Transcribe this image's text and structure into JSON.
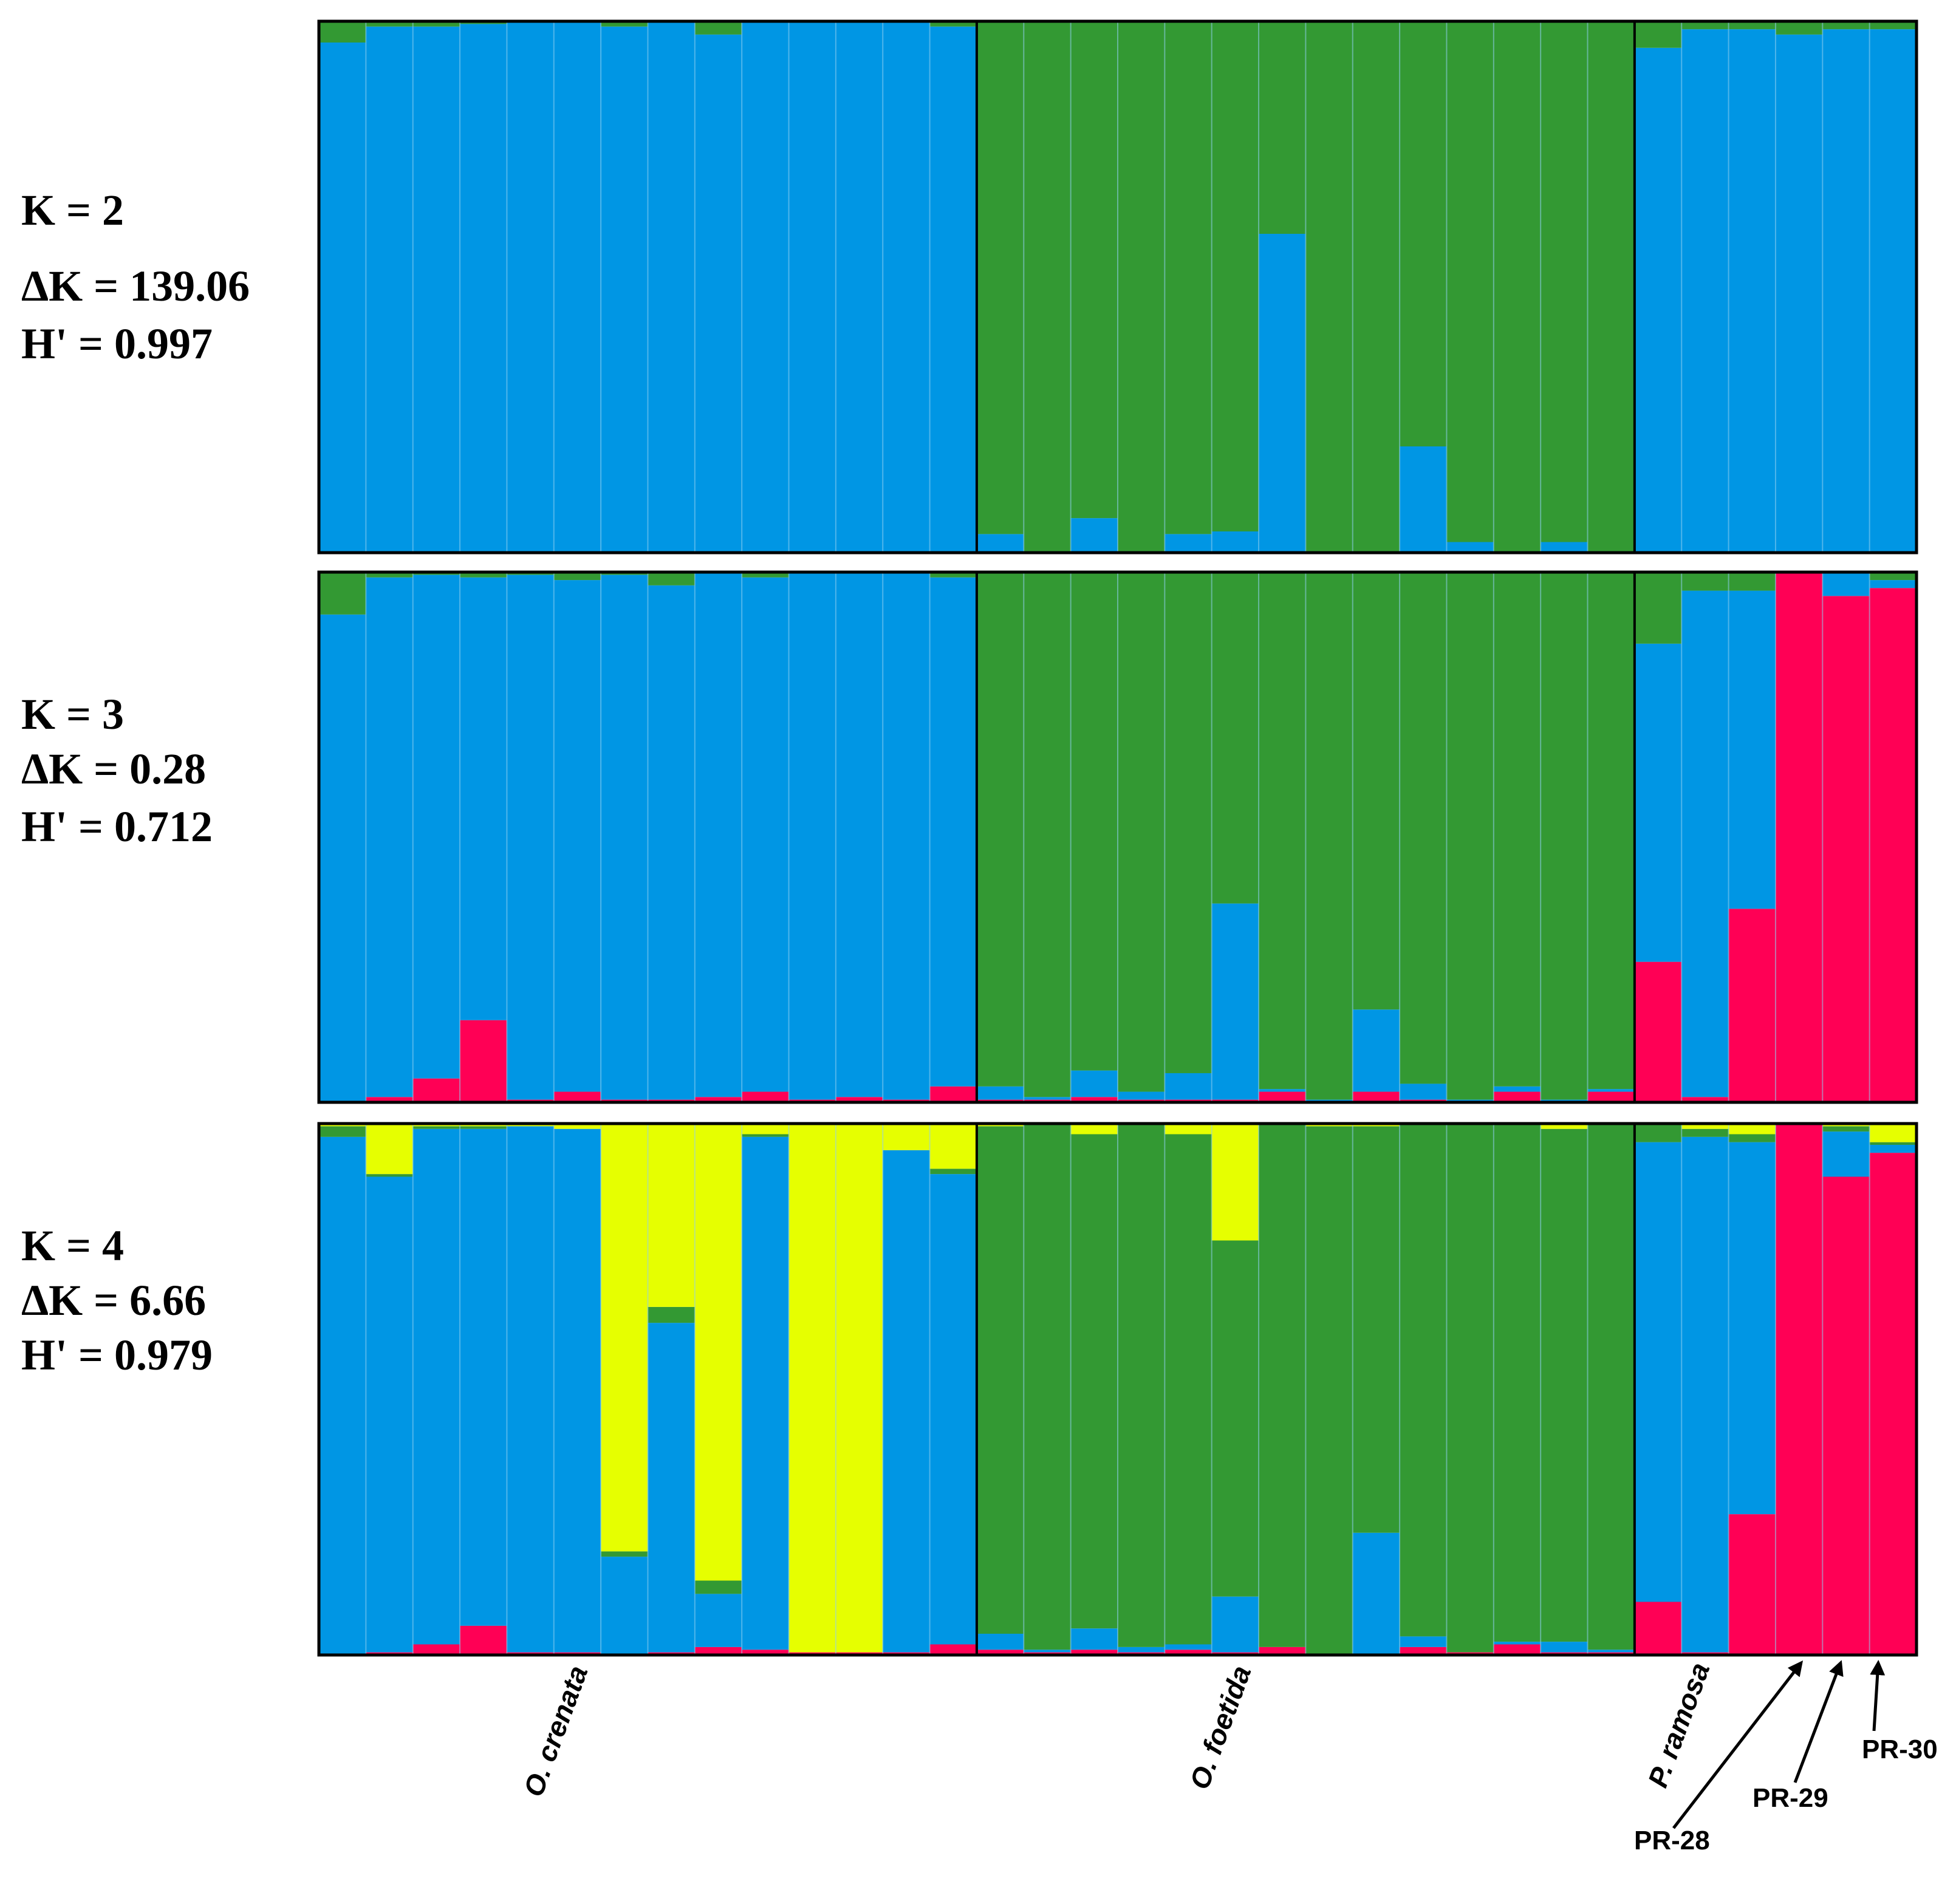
{
  "colors": {
    "blue": "#0096e4",
    "green": "#339933",
    "red": "#ff0055",
    "yellow": "#e6ff00",
    "border": "#000000",
    "separator": "#8fd0f0"
  },
  "chart_data": {
    "type": "bar",
    "subtype": "stacked-admixture",
    "n_individuals": 34,
    "groups": [
      {
        "name": "O. crenata",
        "start": 0,
        "count": 14
      },
      {
        "name": "O. foetida",
        "start": 14,
        "count": 14
      },
      {
        "name": "P. ramosa",
        "start": 28,
        "count": 6
      }
    ],
    "annotations": [
      "PR-28",
      "PR-29",
      "PR-30"
    ],
    "annotation_targets": [
      31,
      32,
      33
    ],
    "panels": [
      {
        "k_label": "K = 2",
        "dk_label": "ΔK = 139.06",
        "h_label": "H' = 0.997",
        "cluster_order": [
          "blue",
          "green"
        ],
        "values": [
          [
            0.96,
            0.04
          ],
          [
            0.99,
            0.01
          ],
          [
            0.99,
            0.01
          ],
          [
            0.995,
            0.005
          ],
          [
            1.0,
            0.0
          ],
          [
            1.0,
            0.0
          ],
          [
            0.99,
            0.01
          ],
          [
            1.0,
            0.0
          ],
          [
            0.975,
            0.025
          ],
          [
            1.0,
            0.0
          ],
          [
            1.0,
            0.0
          ],
          [
            1.0,
            0.0
          ],
          [
            1.0,
            0.0
          ],
          [
            0.99,
            0.01
          ],
          [
            0.035,
            0.965
          ],
          [
            0.0,
            1.0
          ],
          [
            0.065,
            0.935
          ],
          [
            0.0,
            1.0
          ],
          [
            0.035,
            0.965
          ],
          [
            0.04,
            0.96
          ],
          [
            0.6,
            0.4
          ],
          [
            0.0,
            1.0
          ],
          [
            0.0,
            1.0
          ],
          [
            0.2,
            0.8
          ],
          [
            0.02,
            0.98
          ],
          [
            0.0,
            1.0
          ],
          [
            0.02,
            0.98
          ],
          [
            0.0,
            1.0
          ],
          [
            0.95,
            0.05
          ],
          [
            0.985,
            0.015
          ],
          [
            0.985,
            0.015
          ],
          [
            0.975,
            0.025
          ],
          [
            0.985,
            0.015
          ],
          [
            0.985,
            0.015
          ]
        ]
      },
      {
        "k_label": "K = 3",
        "dk_label": "ΔK = 0.28",
        "h_label": "H' = 0.712",
        "cluster_order": [
          "red",
          "blue",
          "green"
        ],
        "values": [
          [
            0.0,
            0.92,
            0.08
          ],
          [
            0.01,
            0.98,
            0.01
          ],
          [
            0.045,
            0.95,
            0.005
          ],
          [
            0.155,
            0.835,
            0.01
          ],
          [
            0.005,
            0.99,
            0.005
          ],
          [
            0.02,
            0.965,
            0.015
          ],
          [
            0.005,
            0.99,
            0.005
          ],
          [
            0.005,
            0.97,
            0.025
          ],
          [
            0.01,
            0.99,
            0.0
          ],
          [
            0.02,
            0.97,
            0.01
          ],
          [
            0.005,
            0.995,
            0.0
          ],
          [
            0.01,
            0.99,
            0.0
          ],
          [
            0.005,
            0.995,
            0.0
          ],
          [
            0.03,
            0.96,
            0.01
          ],
          [
            0.005,
            0.025,
            0.97
          ],
          [
            0.005,
            0.005,
            0.99
          ],
          [
            0.01,
            0.05,
            0.94
          ],
          [
            0.005,
            0.015,
            0.98
          ],
          [
            0.005,
            0.05,
            0.945
          ],
          [
            0.005,
            0.37,
            0.625
          ],
          [
            0.02,
            0.005,
            0.975
          ],
          [
            0.0,
            0.005,
            0.995
          ],
          [
            0.02,
            0.155,
            0.825
          ],
          [
            0.005,
            0.03,
            0.965
          ],
          [
            0.0,
            0.005,
            0.995
          ],
          [
            0.02,
            0.01,
            0.97
          ],
          [
            0.0,
            0.005,
            0.995
          ],
          [
            0.02,
            0.005,
            0.975
          ],
          [
            0.265,
            0.6,
            0.135
          ],
          [
            0.01,
            0.955,
            0.035
          ],
          [
            0.365,
            0.6,
            0.035
          ],
          [
            1.0,
            0.0,
            0.0
          ],
          [
            0.955,
            0.045,
            0.0
          ],
          [
            0.97,
            0.015,
            0.015
          ]
        ]
      },
      {
        "k_label": "K = 4",
        "dk_label": "ΔK = 6.66",
        "h_label": "H' = 0.979",
        "cluster_order": [
          "red",
          "blue",
          "green",
          "yellow"
        ],
        "values": [
          [
            0.0,
            0.975,
            0.02,
            0.005
          ],
          [
            0.005,
            0.895,
            0.005,
            0.095
          ],
          [
            0.02,
            0.97,
            0.005,
            0.005
          ],
          [
            0.055,
            0.935,
            0.005,
            0.005
          ],
          [
            0.005,
            0.99,
            0.0,
            0.005
          ],
          [
            0.005,
            0.985,
            0.0,
            0.01
          ],
          [
            0.0,
            0.185,
            0.01,
            0.805
          ],
          [
            0.005,
            0.62,
            0.03,
            0.345
          ],
          [
            0.015,
            0.1,
            0.025,
            0.86
          ],
          [
            0.01,
            0.965,
            0.005,
            0.02
          ],
          [
            0.005,
            0.0,
            0.0,
            0.995
          ],
          [
            0.005,
            0.0,
            0.0,
            0.995
          ],
          [
            0.005,
            0.945,
            0.0,
            0.05
          ],
          [
            0.02,
            0.885,
            0.01,
            0.085
          ],
          [
            0.01,
            0.03,
            0.955,
            0.005
          ],
          [
            0.005,
            0.005,
            0.99,
            0.0
          ],
          [
            0.01,
            0.04,
            0.93,
            0.02
          ],
          [
            0.005,
            0.01,
            0.985,
            0.0
          ],
          [
            0.01,
            0.01,
            0.96,
            0.02
          ],
          [
            0.005,
            0.105,
            0.67,
            0.22
          ],
          [
            0.015,
            0.0,
            0.985,
            0.0
          ],
          [
            0.0,
            0.0,
            0.995,
            0.005
          ],
          [
            0.0,
            0.23,
            0.765,
            0.005
          ],
          [
            0.015,
            0.02,
            0.965,
            0.0
          ],
          [
            0.005,
            0.0,
            0.995,
            0.0
          ],
          [
            0.02,
            0.005,
            0.975,
            0.0
          ],
          [
            0.005,
            0.02,
            0.965,
            0.01
          ],
          [
            0.005,
            0.005,
            0.99,
            0.0
          ],
          [
            0.1,
            0.865,
            0.035,
            0.0
          ],
          [
            0.005,
            0.97,
            0.015,
            0.01
          ],
          [
            0.265,
            0.7,
            0.015,
            0.02
          ],
          [
            1.0,
            0.0,
            0.0,
            0.0
          ],
          [
            0.9,
            0.085,
            0.01,
            0.005
          ],
          [
            0.945,
            0.015,
            0.005,
            0.035
          ]
        ]
      }
    ]
  }
}
